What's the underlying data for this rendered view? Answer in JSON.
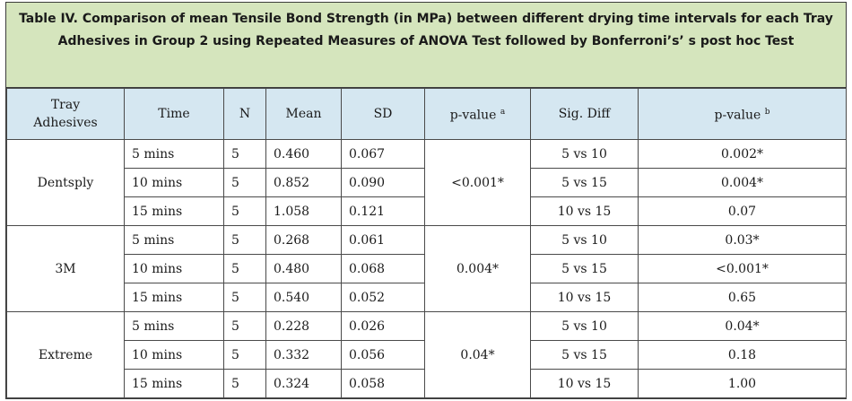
{
  "title": {
    "line1": "Table IV. Comparison of mean Tensile Bond Strength (in MPa) between different drying time intervals for each Tray",
    "line2": "Adhesives in Group 2 using Repeated Measures of ANOVA Test followed by Bonferroni’s’ s post hoc Test"
  },
  "headers": {
    "adhesive_line1": "Tray",
    "adhesive_line2": "Adhesives",
    "time": "Time",
    "n": "N",
    "mean": "Mean",
    "sd": "SD",
    "pvalue_a": "p-value",
    "pvalue_a_sup": "a",
    "sigdiff": "Sig. Diff",
    "pvalue_b": "p-value",
    "pvalue_b_sup": "b"
  },
  "groups": [
    {
      "adhesive": "Dentsply",
      "pvalue_a": "<0.001*",
      "rows": [
        {
          "time": "5 mins",
          "n": "5",
          "mean": "0.460",
          "sd": "0.067",
          "sig": "5 vs 10",
          "pb": "0.002*"
        },
        {
          "time": "10 mins",
          "n": "5",
          "mean": "0.852",
          "sd": "0.090",
          "sig": "5 vs 15",
          "pb": "0.004*"
        },
        {
          "time": "15 mins",
          "n": "5",
          "mean": "1.058",
          "sd": "0.121",
          "sig": "10 vs 15",
          "pb": "0.07"
        }
      ]
    },
    {
      "adhesive": "3M",
      "pvalue_a": "0.004*",
      "rows": [
        {
          "time": "5 mins",
          "n": "5",
          "mean": "0.268",
          "sd": "0.061",
          "sig": "5 vs 10",
          "pb": "0.03*"
        },
        {
          "time": "10 mins",
          "n": "5",
          "mean": "0.480",
          "sd": "0.068",
          "sig": "5 vs 15",
          "pb": "<0.001*"
        },
        {
          "time": "15 mins",
          "n": "5",
          "mean": "0.540",
          "sd": "0.052",
          "sig": "10 vs 15",
          "pb": "0.65"
        }
      ]
    },
    {
      "adhesive": "Extreme",
      "pvalue_a": "0.04*",
      "rows": [
        {
          "time": "5 mins",
          "n": "5",
          "mean": "0.228",
          "sd": "0.026",
          "sig": "5 vs 10",
          "pb": "0.04*"
        },
        {
          "time": "10 mins",
          "n": "5",
          "mean": "0.332",
          "sd": "0.056",
          "sig": "5 vs 15",
          "pb": "0.18"
        },
        {
          "time": "15 mins",
          "n": "5",
          "mean": "0.324",
          "sd": "0.058",
          "sig": "10 vs 15",
          "pb": "1.00"
        }
      ]
    }
  ]
}
